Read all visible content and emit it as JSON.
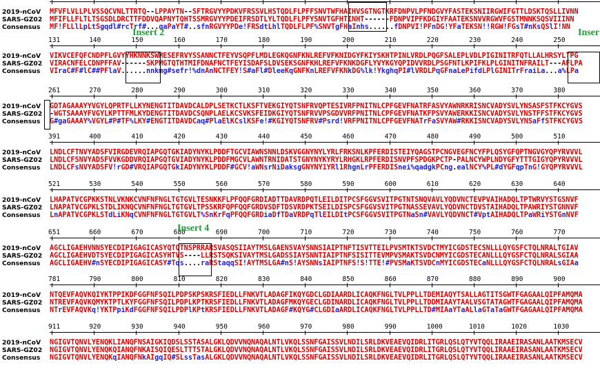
{
  "labels": {
    "nCoV": "2019-nCoV",
    "sars": "SARS-GZ02",
    "cons": "Consensus"
  },
  "inserts": {
    "insert2": "Insert 2",
    "insert3": "Inser",
    "insert4": "Insert 4"
  },
  "blocks": [
    {
      "ruler": [],
      "ncov": "MFVFLVLLPLVSSQCVNLTTRTQ--LPPAYTN--SFTRGVYYPDKVFRSSVLHSTQDLFLPFFSNVTWFHAIHVSGTNGTKRFDNPVLPFNDGVYFASTEKSNIIRGWIFGTTLDSKTQSLLIVNN",
      "sars": "MFIFLLFLTLTSGSDLDRCTTFDDVQAPNYTQHTSSMRGVYYPDEIFRSDTLYLTQDLFLPFYSNVTGFHTINHT------FDNPVIPFKDGIYFAATEKSNVVRGWVFGSTMNNKSQSVIIINN",
      "cons": "MF!FLLlLpLtSgqdl#rcTrf#...qaPaYT#..sfnRGVYYPDe!FRSdtLhlTQDLFLPF%SNVTgFHaInhs......fDNPVI!PFnDG!YFaTEKSN!!RGW!FGsT#nKsQSlI!NN"
    },
    {
      "ruler": [
        "131",
        "140",
        "150",
        "160",
        "170",
        "180",
        "190",
        "200",
        "210",
        "220",
        "230",
        "240",
        "250"
      ],
      "ncov": "VIKVCEFQFCNDPFLGVYYHKNNKSWMESEFRVYSSANNCTFEYVSQPFLMDLEGKQGNFKNLREFVFKNIDGYFKIYSKHTPINLVRDLPQGFSALEPLVDLPIGINITRFQTLLALHRSYLTPG",
      "sars": "VIRACNFELCDNPFFAV------SKPMGTQTHTMIFDNAFNCTFEYISDAFSLDVSEKSGNFKHLREFVFKNKDGFLYVYKGYQPIDVVRDLPSGFNTLKPIFKLPLGINITNFRAILT---AFLPA",
      "cons": "VIraC#F#lC##PFlaV......nnkmg#sefr!%dnAnNCTFEY!S#aFl#DleeKqGNFKnLREFVFKNkDG%lk!YkghqPI#lVRDLPqGFnaLePifdLPlGINITrFraiLa...a%LPa"
    },
    {
      "ruler": [
        "261",
        "270",
        "280",
        "290",
        "300",
        "310",
        "320",
        "330",
        "340",
        "350",
        "360",
        "370",
        "380"
      ],
      "ncov": "GDTAGAAAYYVGYLQPRTFLLKYNENGTITDAVDCALDPLSETKCTLKSFTVEKGIYQTSNFRVQPTESIVRFPNITNLCPFGEVFNATRFASVYAWNRKRISNCVADYSVLYNSASFSTFKCYGVS",
      "sars": "-WGTSAAAYFVGYLKPTTFMLKYDENGTITDAVDCSQNPLAELKCSVKSFEIDKGIYQTSNFRVVPSGDVVRFPNITNLCPFGEVFNATKFPSVYAWERKKISNCVADYSVLYNSTFFSTFKCYGVS",
      "cons": "G#gaGAAAY%VGYL#P#TF%LKY#ENGTITDAVDCaq#PlaElKCslKSFe!#KGIYQTSNFRV#Psrd!VRFPNITNLCPFGEVFNATrFaSVYAW#RKKISNCVADYSVLYNSaFfSTFKCYGVS"
    },
    {
      "ruler": [
        "391",
        "400",
        "410",
        "420",
        "430",
        "440",
        "450",
        "460",
        "470",
        "480",
        "490",
        "500",
        "510"
      ],
      "ncov": "LNDLCFTNVYADSFVIRGDEVRQIAPGQTGKIADYNYKLPDDFTGCVIAWNSNNLDSKVGGNYNYLYRLFRKSNLKPFERDISTEIYQAGSTPCNGVEGFNCYFPLQSYGFQPTNGVGYQPYRVVVL",
      "sars": "LNDLCFSNVYADSFVVKGDDVRQIAPGQTGVIADYNYKLPDDFMGCVLAWNTRNIDATSTGNYNYKYRYLRHGKLRPFERDISNVPFSPDGKPCTP-PALNCYWPLNDYGFYTTTGIGYQPYRVVVL",
      "cons": "LNDLCFsNVYADSFV!rGD#VRQIAPGQTGkIADYNYKLPDDF#GCV!aWNsrNiDaksgGNYNY1YRl1RhgnLrPFERDISnei%qadgkPCng.ealNCY%PL#dYGFqpTnG!GYQPYRVVVL"
    },
    {
      "ruler": [
        "521",
        "530",
        "540",
        "550",
        "560",
        "570",
        "580",
        "590",
        "600",
        "610",
        "620",
        "630",
        "640"
      ],
      "ncov": "LHAPATVCGPKKSTNLVKNKCVNFNFNGLTGTGVLTESNKKFLPFQQFGRDIADTTDAVRDPQTLEILDITPCSFGGVSVITPGTNTSNQVAVLYQDVNCTEVPVAIHADQLTPTWRVYSTGSNVF",
      "sars": "LNAPATVCGPKLSTDLIKNQCVNFNFNGLTGTGVLTPSSKRFQPFQQFGRDVSDFTDSVRDPKTSEILDISPCSFGGVSVITPGTNASSEVAVLYQDVNCTDVSTAIHADQLTPAWRIYSTGNNVF",
      "cons": "LnAPATVCGPKLSTdLiKNqCVNFNFNGLTGTGVLT%SnKrFqPFQQFGRDiaDfTDaVRDPqTlEILDItPCSFGGVSVITPGTNaSn#VAVLYQDVNCT#VptAIHADQLTPaWRiYSTGnNVF"
    },
    {
      "ruler": [
        "651",
        "660",
        "670",
        "680",
        "690",
        "700",
        "710",
        "720",
        "730",
        "740",
        "750",
        "760",
        "770"
      ],
      "ncov": "AGCLIGAEHVNNSYECDIPIGAGICASYQTQTNSPRRARSVASQSIIAYTMSLGAENSVAYSNNSIAIPTNFTISVTTEILPVSMTKTSVDCTMYICGDSTECSNLLLQYGSFCTQLNRALTGIAV",
      "sars": "AGCLIGAEHVDTSYECDIPIGAGICASYHTVS----LLRSTSQKSIVAYTMSLGADSSIAYSNNTIAIPTNFSISITTEVMPVSMAKTSVDCNMYICGDSTECANLLLQYGSFCTQLNRALSGIAA",
      "cons": "AGCLIGAEHV#nSYECDIPIGAGICASY#Tqs....raRStaqqSI!AYTMSLGA#nS!AYSNNsIAIPTNFS!S!TTE!#PVSMaKTSVDCnMYICGDSTECaNLLLQYGSFCTQLNRALsGIAa"
    },
    {
      "ruler": [
        "781",
        "790",
        "800",
        "810",
        "820",
        "830",
        "840",
        "850",
        "860",
        "870",
        "880",
        "890",
        "900"
      ],
      "ncov": "NTQEVFAQVKQIYKTPPIKDFGGFNFSQILPDPSKPSKRSFIEDLLFNKVTLADAGFIKQYGDCLGDIAARDLICAQKFNGLTVLPPLLTDEMIAQYTSALLAGTITSGWTFGAGAALQIPFAMQMA",
      "sars": "NTREVFAQVKQMYKTPTLKYFGGFNFSQILPDPLKPTKRSFIEDLLFNKVTLADAGFMKQYGECLGDINARDLICAQKFNGLTVLPPLLTDDMIAAYTAALVSGTATAGWTFGAGAALQIPFAMQMA",
      "cons": "NTrEVFAQVKq!YKTPpiKdFGGFNFSQILPDPlKPtKRSFIEDLLFNKVTLADAGF#KQYG#CLGDIaARDLICAQKFNGLTVLPPLLTD#MIAaYTaALlaGTaTaGWTFGAGAALQIPFAMQMA"
    },
    {
      "ruler": [
        "911",
        "920",
        "930",
        "940",
        "950",
        "960",
        "970",
        "980",
        "990",
        "1000",
        "1010",
        "1020",
        "1030"
      ],
      "ncov": "NGIGVTQNVLYENQKLIANQFNSAIGKIQDSLSSTASALGKLQDVVNQNAQALNTLVKQLSSNFGAISSVLNDILSRLDKVEAEVQIDRLITGRLQSLQTYVTQQLIRAAEIRASANLAATKMSECV",
      "sars": "NGIGVTQNVLYENQKQIANQFNKAISQIQESLTTTSTALGKLQDVVNQNAQALNTLVKQLSSNFGAISSVLNDILSRLDKVEAEVQIDRLITGRLQSLQTYVTQQLIRAAEIRASANLAATKMSECV",
      "cons": "NGIGVTQNVLYENQKqIANQFNkAIgqIQ#SLssTasALGKLQDVVNQNAQALNTLVKQLSSNFGAISSVLNDILSRLDKVEAEVQIDRLITGRLQSLQTYVTQQLIRAAEIRASANLAATKMSECV"
    }
  ]
}
